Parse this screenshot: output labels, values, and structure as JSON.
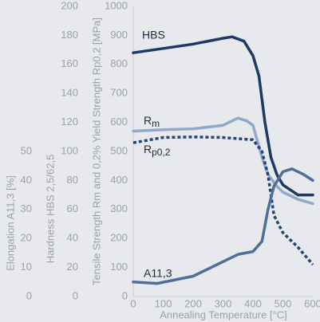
{
  "chart_data": {
    "type": "line",
    "x_label": "Annealing Temperature [°C]",
    "y_label": "Tensile Strength Rm and 0,2% Yield Strength Rp0,2 [MPa]",
    "y2_label": "Hardness HBS 2,5/62,5",
    "y3_label": "Elongation A11,3 [%]",
    "xlim": [
      0,
      600
    ],
    "xticks": [
      0,
      100,
      200,
      300,
      400,
      500,
      600
    ],
    "ylim": [
      0,
      1000
    ],
    "yticks": [
      0,
      100,
      200,
      300,
      400,
      500,
      600,
      700,
      800,
      900,
      1000
    ],
    "y2lim": [
      0,
      200
    ],
    "y2ticks": [
      0,
      20,
      40,
      60,
      80,
      100,
      120,
      140,
      160,
      180,
      200
    ],
    "y3lim": [
      0,
      100
    ],
    "y3ticks": [
      0,
      10,
      20,
      30,
      40,
      50
    ],
    "series": [
      {
        "name": "HBS",
        "color": "#1d3a66",
        "axis": "y2",
        "dash": false,
        "x": [
          0,
          100,
          200,
          300,
          330,
          370,
          400,
          420,
          440,
          460,
          480,
          500,
          550,
          600
        ],
        "values": [
          168,
          171,
          174,
          178,
          179,
          176,
          166,
          152,
          120,
          96,
          84,
          77,
          70,
          70
        ]
      },
      {
        "name": "Rm",
        "color": "#90a9c9",
        "axis": "y",
        "dash": false,
        "x": [
          0,
          100,
          200,
          300,
          350,
          380,
          400,
          430,
          450,
          480,
          500,
          550,
          600
        ],
        "values": [
          570,
          575,
          578,
          590,
          615,
          605,
          590,
          480,
          420,
          380,
          360,
          335,
          320
        ]
      },
      {
        "name": "Rp0,2",
        "color": "#23467a",
        "axis": "y",
        "dash": true,
        "x": [
          0,
          100,
          200,
          300,
          400,
          430,
          450,
          470,
          500,
          550,
          600
        ],
        "values": [
          530,
          548,
          550,
          548,
          540,
          500,
          420,
          280,
          220,
          170,
          110
        ]
      },
      {
        "name": "A11,3",
        "color": "#4f6f9a",
        "axis": "y3",
        "dash": false,
        "x": [
          0,
          80,
          200,
          300,
          350,
          400,
          430,
          450,
          470,
          500,
          530,
          570,
          600
        ],
        "values": [
          5,
          4.5,
          7,
          12,
          14.5,
          15.5,
          19,
          30,
          38,
          43,
          44,
          42,
          40
        ]
      }
    ]
  }
}
